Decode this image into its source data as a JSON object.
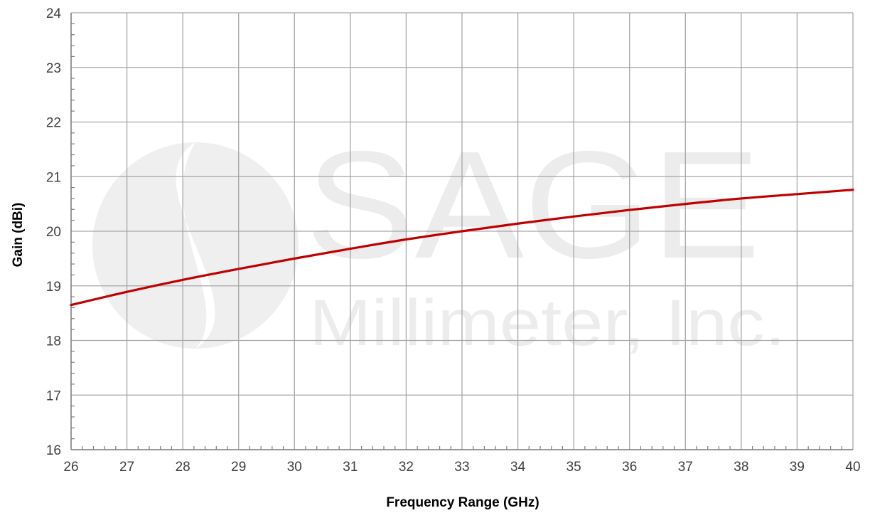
{
  "chart_data": {
    "type": "line",
    "xlabel": "Frequency Range (GHz)",
    "ylabel": "Gain (dBi)",
    "xlim": [
      26,
      40
    ],
    "ylim": [
      16,
      24
    ],
    "x_ticks": [
      26,
      27,
      28,
      29,
      30,
      31,
      32,
      33,
      34,
      35,
      36,
      37,
      38,
      39,
      40
    ],
    "y_ticks": [
      16,
      17,
      18,
      19,
      20,
      21,
      22,
      23,
      24
    ],
    "x_minor_per_major": 5,
    "y_minor_per_major": 5,
    "grid": true,
    "legend": "none",
    "series": [
      {
        "color": "#c00000",
        "x": [
          26,
          27,
          28,
          29,
          30,
          31,
          32,
          33,
          34,
          35,
          36,
          37,
          38,
          39,
          40
        ],
        "y": [
          18.65,
          18.89,
          19.11,
          19.31,
          19.5,
          19.68,
          19.85,
          20.0,
          20.14,
          20.27,
          20.39,
          20.5,
          20.6,
          20.68,
          20.76
        ]
      }
    ]
  },
  "watermark": {
    "brand": "SAGE",
    "subtitle": "Millimeter, Inc."
  },
  "colors": {
    "grid": "#a6a6a6",
    "axis": "#7f7f7f",
    "line": "#c00000",
    "watermark": "#ececec"
  }
}
